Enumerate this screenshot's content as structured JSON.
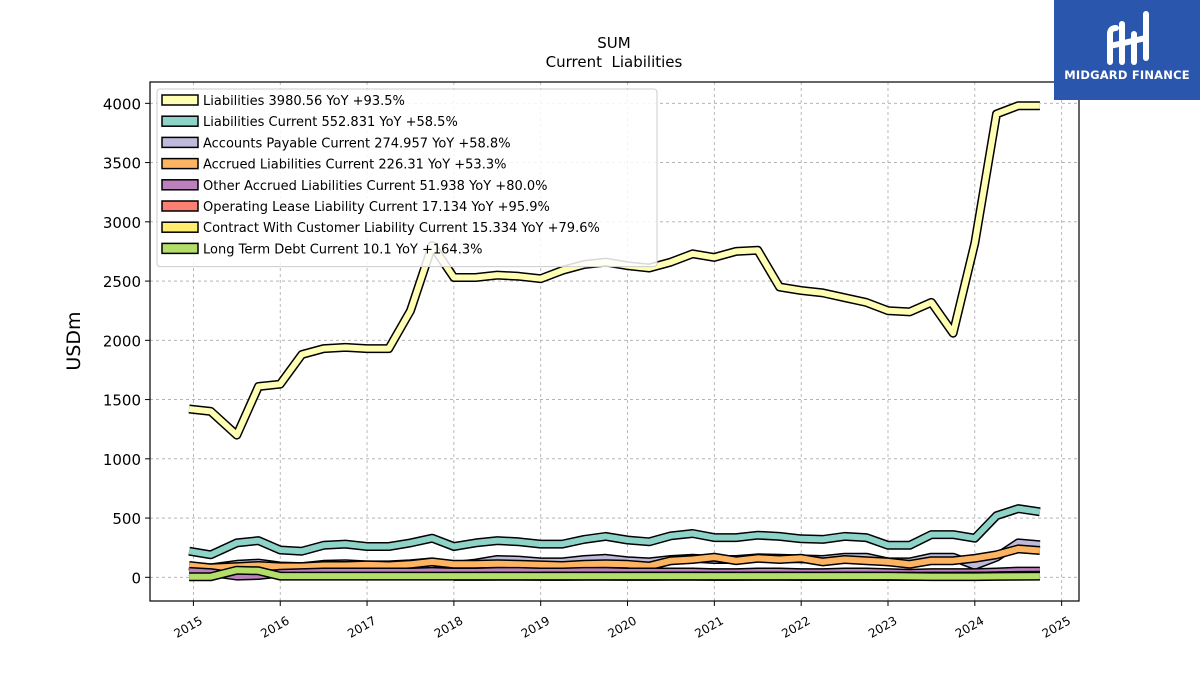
{
  "watermark": {
    "name": "MIDGARD FINANCE",
    "bg_color": "#2a56ad"
  },
  "chart_data": {
    "type": "line",
    "title": "SUM",
    "subtitle": "Current  Liabilities",
    "ylabel": "USDm",
    "xlabel": "",
    "xlim": [
      2014.5,
      2025.2
    ],
    "ylim": [
      -200,
      4180
    ],
    "x_ticks": [
      2015,
      2016,
      2017,
      2018,
      2019,
      2020,
      2021,
      2022,
      2023,
      2024,
      2025
    ],
    "y_ticks": [
      0,
      500,
      1000,
      1500,
      2000,
      2500,
      3000,
      3500,
      4000
    ],
    "grid": true,
    "legend_position": "top-left",
    "x": [
      2014.95,
      2015.2,
      2015.5,
      2015.75,
      2016.0,
      2016.25,
      2016.5,
      2016.75,
      2017.0,
      2017.25,
      2017.5,
      2017.75,
      2018.0,
      2018.25,
      2018.5,
      2018.75,
      2019.0,
      2019.25,
      2019.5,
      2019.75,
      2020.0,
      2020.25,
      2020.5,
      2020.75,
      2021.0,
      2021.25,
      2021.5,
      2021.75,
      2022.0,
      2022.25,
      2022.5,
      2022.75,
      2023.0,
      2023.25,
      2023.5,
      2023.75,
      2024.0,
      2024.25,
      2024.5,
      2024.75
    ],
    "series": [
      {
        "name": "Liabilities",
        "label": "Liabilities  3980.56 YoY +93.5%",
        "color": "#ffffb3",
        "values": [
          1420,
          1400,
          1200,
          1610,
          1630,
          1880,
          1930,
          1940,
          1930,
          1930,
          2250,
          2800,
          2530,
          2530,
          2550,
          2540,
          2520,
          2590,
          2640,
          2660,
          2630,
          2610,
          2660,
          2730,
          2700,
          2750,
          2760,
          2450,
          2420,
          2400,
          2360,
          2320,
          2250,
          2240,
          2320,
          2060,
          2820,
          3910,
          3980,
          3980
        ]
      },
      {
        "name": "Liabilities Current",
        "label": "Liabilities Current  552.831 YoY +58.5%",
        "color": "#8dd3c7",
        "values": [
          220,
          190,
          290,
          310,
          230,
          220,
          270,
          280,
          260,
          260,
          290,
          330,
          260,
          290,
          310,
          300,
          280,
          280,
          320,
          345,
          315,
          300,
          350,
          370,
          335,
          335,
          355,
          345,
          325,
          320,
          345,
          335,
          270,
          270,
          360,
          360,
          330,
          520,
          580,
          553
        ]
      },
      {
        "name": "Accounts Payable Current",
        "label": "Accounts Payable Current  274.957 YoY +58.8%",
        "color": "#bebada",
        "values": [
          95,
          80,
          110,
          120,
          95,
          90,
          110,
          115,
          105,
          105,
          115,
          130,
          100,
          120,
          150,
          145,
          130,
          130,
          150,
          160,
          140,
          130,
          150,
          160,
          150,
          150,
          165,
          160,
          155,
          150,
          170,
          170,
          130,
          130,
          170,
          170,
          100,
          170,
          290,
          275
        ]
      },
      {
        "name": "Accrued Liabilities Current",
        "label": "Accrued Liabilities Current  226.31 YoY +53.3%",
        "color": "#fdb462",
        "values": [
          100,
          80,
          90,
          100,
          90,
          90,
          100,
          100,
          105,
          100,
          110,
          130,
          110,
          110,
          115,
          110,
          105,
          100,
          110,
          115,
          110,
          95,
          140,
          150,
          170,
          140,
          160,
          150,
          160,
          130,
          150,
          140,
          130,
          110,
          140,
          140,
          160,
          190,
          240,
          226
        ]
      },
      {
        "name": "Other Accrued Liabilities Current",
        "label": "Other Accrued Liabilities Current  51.938 YoY +80.0%",
        "color": "#bc80bd",
        "values": [
          50,
          40,
          10,
          15,
          35,
          40,
          45,
          45,
          45,
          45,
          45,
          50,
          45,
          45,
          50,
          50,
          45,
          45,
          50,
          50,
          45,
          45,
          45,
          45,
          40,
          40,
          45,
          45,
          40,
          40,
          45,
          45,
          40,
          35,
          40,
          40,
          40,
          45,
          52,
          52
        ]
      },
      {
        "name": "Operating Lease Liability Current",
        "label": "Operating Lease Liability Current  17.134 YoY +95.9%",
        "color": "#fb8072",
        "values": [
          null,
          null,
          null,
          null,
          null,
          null,
          null,
          null,
          null,
          null,
          null,
          null,
          null,
          null,
          null,
          null,
          10,
          10,
          11,
          11,
          11,
          11,
          11,
          11,
          10,
          10,
          10,
          10,
          9,
          9,
          9,
          9,
          9,
          9,
          9,
          9,
          10,
          12,
          16,
          17
        ]
      },
      {
        "name": "Contract With Customer Liability Current",
        "label": "Contract With Customer Liability Current  15.334 YoY +79.6%",
        "color": "#ffed6f",
        "values": [
          null,
          null,
          null,
          null,
          null,
          null,
          null,
          null,
          null,
          null,
          null,
          null,
          8,
          8,
          9,
          9,
          8,
          8,
          9,
          9,
          8,
          8,
          9,
          9,
          8,
          8,
          9,
          9,
          8,
          8,
          9,
          9,
          8,
          8,
          9,
          9,
          10,
          12,
          15,
          15
        ]
      },
      {
        "name": "Long Term Debt Current",
        "label": "Long Term Debt Current  10.1 YoY +164.3%",
        "color": "#b3de69",
        "values": [
          5,
          5,
          60,
          55,
          10,
          10,
          10,
          10,
          10,
          10,
          10,
          10,
          10,
          10,
          10,
          10,
          10,
          10,
          10,
          10,
          10,
          10,
          10,
          10,
          10,
          10,
          10,
          10,
          10,
          10,
          10,
          10,
          10,
          8,
          6,
          6,
          6,
          8,
          9,
          10
        ]
      }
    ]
  }
}
